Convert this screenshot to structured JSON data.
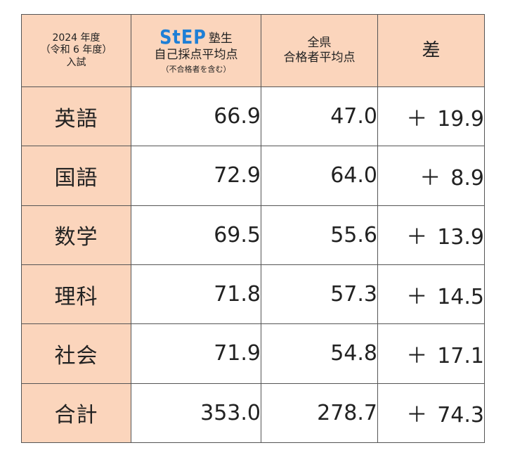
{
  "header": {
    "col1": {
      "line1": "2024 年度",
      "line2": "（令和 6 年度）",
      "line3": "入試"
    },
    "col2": {
      "logo": "StEP",
      "logo_suffix": "塾生",
      "line2": "自己採点平均点",
      "note": "（不合格者を含む）"
    },
    "col3": {
      "line1": "全県",
      "line2": "合格者平均点"
    },
    "col4": {
      "label": "差"
    }
  },
  "rows": [
    {
      "subject": "英語",
      "step": "66.9",
      "pref": "47.0",
      "diff_sign": "＋",
      "diff": "19.9"
    },
    {
      "subject": "国語",
      "step": "72.9",
      "pref": "64.0",
      "diff_sign": "＋",
      "diff": "8.9"
    },
    {
      "subject": "数学",
      "step": "69.5",
      "pref": "55.6",
      "diff_sign": "＋",
      "diff": "13.9"
    },
    {
      "subject": "理科",
      "step": "71.8",
      "pref": "57.3",
      "diff_sign": "＋",
      "diff": "14.5"
    },
    {
      "subject": "社会",
      "step": "71.9",
      "pref": "54.8",
      "diff_sign": "＋",
      "diff": "17.1"
    },
    {
      "subject": "合計",
      "step": "353.0",
      "pref": "278.7",
      "diff_sign": "＋",
      "diff": "74.3"
    }
  ],
  "colors": {
    "header_bg": "#fbd5bc",
    "logo_blue": "#1e7fd6",
    "border": "#555555"
  }
}
